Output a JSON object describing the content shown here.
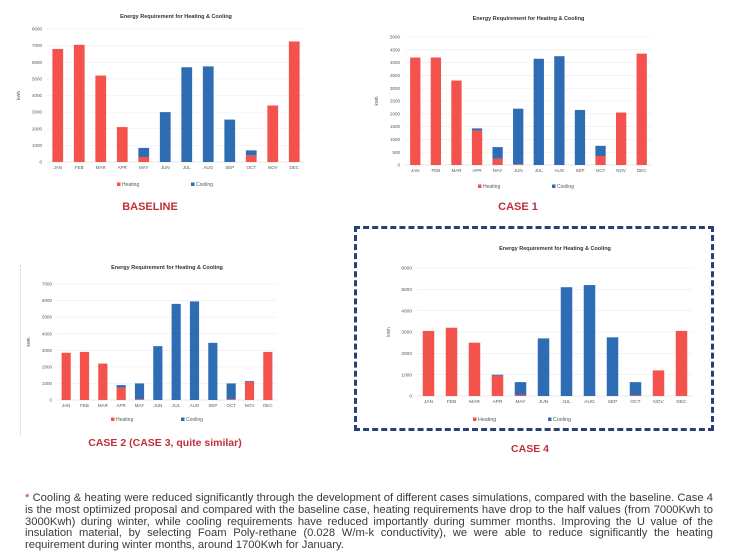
{
  "colors": {
    "heating": "#f4524d",
    "cooling": "#2e6db4",
    "label": "#c0303a",
    "box_border": "#2a3f73"
  },
  "chart_data": [
    {
      "id": "baseline",
      "type": "bar",
      "stacked": true,
      "title": "Energy Requirement for Heating & Cooling",
      "caption": "BASELINE",
      "ylabel": "kWh",
      "xlabel": "",
      "ylim": [
        0,
        8000
      ],
      "yticks": [
        0,
        1000,
        2000,
        3000,
        4000,
        5000,
        6000,
        7000,
        8000
      ],
      "grid": true,
      "legend": "bottom",
      "categories": [
        "JAN",
        "FEB",
        "MAR",
        "APR",
        "MAY",
        "JUN",
        "JUL",
        "AUG",
        "SEP",
        "OCT",
        "NOV",
        "DEC"
      ],
      "series": [
        {
          "name": "Heating",
          "values": [
            6800,
            7050,
            5200,
            2100,
            300,
            0,
            0,
            0,
            0,
            400,
            3400,
            7250
          ]
        },
        {
          "name": "Cooling",
          "values": [
            0,
            0,
            0,
            0,
            550,
            3000,
            5700,
            5750,
            2550,
            300,
            0,
            0
          ]
        }
      ]
    },
    {
      "id": "case1",
      "type": "bar",
      "stacked": true,
      "title": "Energy Requirement for Heating & Cooling",
      "caption": "CASE 1",
      "ylabel": "kWh",
      "xlabel": "",
      "ylim": [
        0,
        5000
      ],
      "yticks": [
        0,
        500,
        1000,
        1500,
        2000,
        2500,
        3000,
        3500,
        4000,
        4500,
        5000
      ],
      "grid": true,
      "legend": "bottom",
      "categories": [
        "JAN",
        "FEB",
        "MAR",
        "APR",
        "MAY",
        "JUN",
        "JUL",
        "AUG",
        "SEP",
        "OCT",
        "NOV",
        "DEC"
      ],
      "series": [
        {
          "name": "Heating",
          "values": [
            4200,
            4200,
            3300,
            1350,
            250,
            30,
            0,
            0,
            0,
            350,
            2050,
            4350
          ]
        },
        {
          "name": "Cooling",
          "values": [
            0,
            0,
            0,
            80,
            450,
            2170,
            4150,
            4250,
            2150,
            400,
            0,
            0
          ]
        }
      ]
    },
    {
      "id": "case2",
      "type": "bar",
      "stacked": true,
      "title": "Energy Requirement for Heating & Cooling",
      "caption": "CASE 2 (CASE 3, quite similar)",
      "ylabel": "kWh",
      "xlabel": "",
      "ylim": [
        0,
        7000
      ],
      "yticks": [
        0,
        1000,
        2000,
        3000,
        4000,
        5000,
        6000,
        7000
      ],
      "grid": true,
      "legend": "bottom",
      "categories": [
        "JAN",
        "FEB",
        "MAR",
        "APR",
        "MAY",
        "JUN",
        "JUL",
        "AUG",
        "SEP",
        "OCT",
        "NOV",
        "DEC"
      ],
      "series": [
        {
          "name": "Heating",
          "values": [
            2850,
            2900,
            2200,
            750,
            50,
            0,
            0,
            0,
            0,
            50,
            1100,
            2900
          ]
        },
        {
          "name": "Cooling",
          "values": [
            0,
            0,
            0,
            150,
            950,
            3250,
            5800,
            5950,
            3450,
            950,
            50,
            0
          ]
        }
      ]
    },
    {
      "id": "case4",
      "type": "bar",
      "stacked": true,
      "title": "Energy Requirement for Heating & Cooling",
      "caption": "CASE 4",
      "ylabel": "kWh",
      "xlabel": "",
      "ylim": [
        0,
        6000
      ],
      "yticks": [
        0,
        1000,
        2000,
        3000,
        4000,
        5000,
        6000
      ],
      "grid": true,
      "legend": "bottom",
      "categories": [
        "JAN",
        "FEB",
        "MAR",
        "APR",
        "MAY",
        "JUN",
        "JUL",
        "AUG",
        "SEP",
        "OCT",
        "NOV",
        "DEC"
      ],
      "series": [
        {
          "name": "Heating",
          "values": [
            3050,
            3200,
            2500,
            950,
            50,
            0,
            0,
            0,
            0,
            30,
            1200,
            3050
          ]
        },
        {
          "name": "Cooling",
          "values": [
            0,
            0,
            0,
            50,
            600,
            2700,
            5100,
            5200,
            2750,
            620,
            0,
            0
          ]
        }
      ]
    }
  ],
  "footnote": {
    "marker": "*",
    "text": "Cooling & heating were reduced significantly through the development of different cases simulations, compared with the baseline. Case 4 is the most optimized proposal and compared with the baseline case, heating requirements have drop to the half values (from 7000Kwh to 3000Kwh) during winter, while cooling requirements have reduced importantly during summer months. Improving the U value of the insulation material, by selecting Foam Poly-rethane (0.028 W/m-k conductivity), we were able to reduce significantly the heating requirement during winter months, around 1700Kwh for January."
  }
}
